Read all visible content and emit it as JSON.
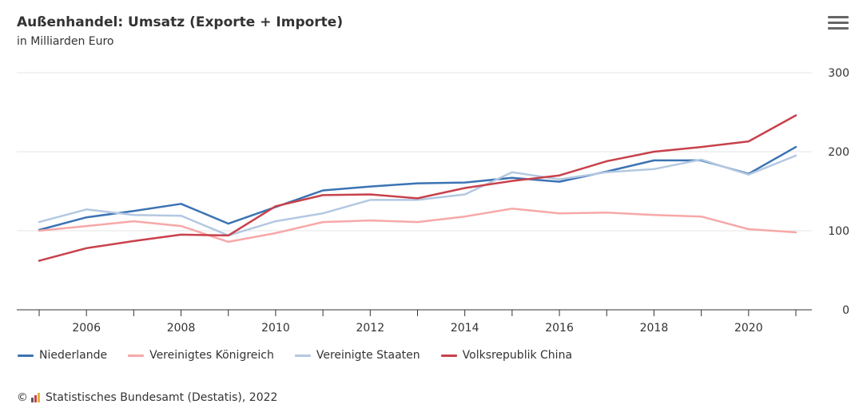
{
  "header": {
    "title": "Außenhandel: Umsatz (Exporte + Importe)",
    "subtitle": "in Milliarden Euro",
    "menu_icon": "hamburger-menu-icon"
  },
  "footer": {
    "copyright_symbol": "©",
    "logo_icon": "destatis-logo-icon",
    "credits_text": "Statistisches Bundesamt (Destatis), 2022"
  },
  "chart_data": {
    "type": "line",
    "title": "Außenhandel: Umsatz (Exporte + Importe)",
    "subtitle": "in Milliarden Euro",
    "x": [
      2005,
      2006,
      2007,
      2008,
      2009,
      2010,
      2011,
      2012,
      2013,
      2014,
      2015,
      2016,
      2017,
      2018,
      2019,
      2020,
      2021
    ],
    "xticks": [
      2006,
      2008,
      2010,
      2012,
      2014,
      2016,
      2018,
      2020
    ],
    "yticks": [
      0,
      100,
      200,
      300
    ],
    "ylim": [
      0,
      300
    ],
    "y_axis_position": "right",
    "grid": true,
    "legend_position": "bottom-left",
    "series": [
      {
        "name": "Niederlande",
        "color": "#3c73b4",
        "values": [
          101,
          117,
          125,
          134,
          109,
          130,
          151,
          156,
          160,
          161,
          167,
          162,
          175,
          189,
          189,
          172,
          206
        ]
      },
      {
        "name": "Vereinigtes Königreich",
        "color": "#f7a8a8",
        "values": [
          100,
          106,
          112,
          106,
          86,
          97,
          111,
          113,
          111,
          118,
          128,
          122,
          123,
          120,
          118,
          102,
          98
        ]
      },
      {
        "name": "Vereinigte Staaten",
        "color": "#b3c8e1",
        "values": [
          111,
          127,
          120,
          119,
          94,
          112,
          122,
          139,
          139,
          146,
          174,
          165,
          174,
          178,
          190,
          171,
          195
        ]
      },
      {
        "name": "Volksrepublik China",
        "color": "#c8414b",
        "values": [
          62,
          78,
          87,
          95,
          94,
          131,
          145,
          146,
          141,
          154,
          163,
          170,
          188,
          200,
          206,
          213,
          246
        ]
      }
    ]
  }
}
